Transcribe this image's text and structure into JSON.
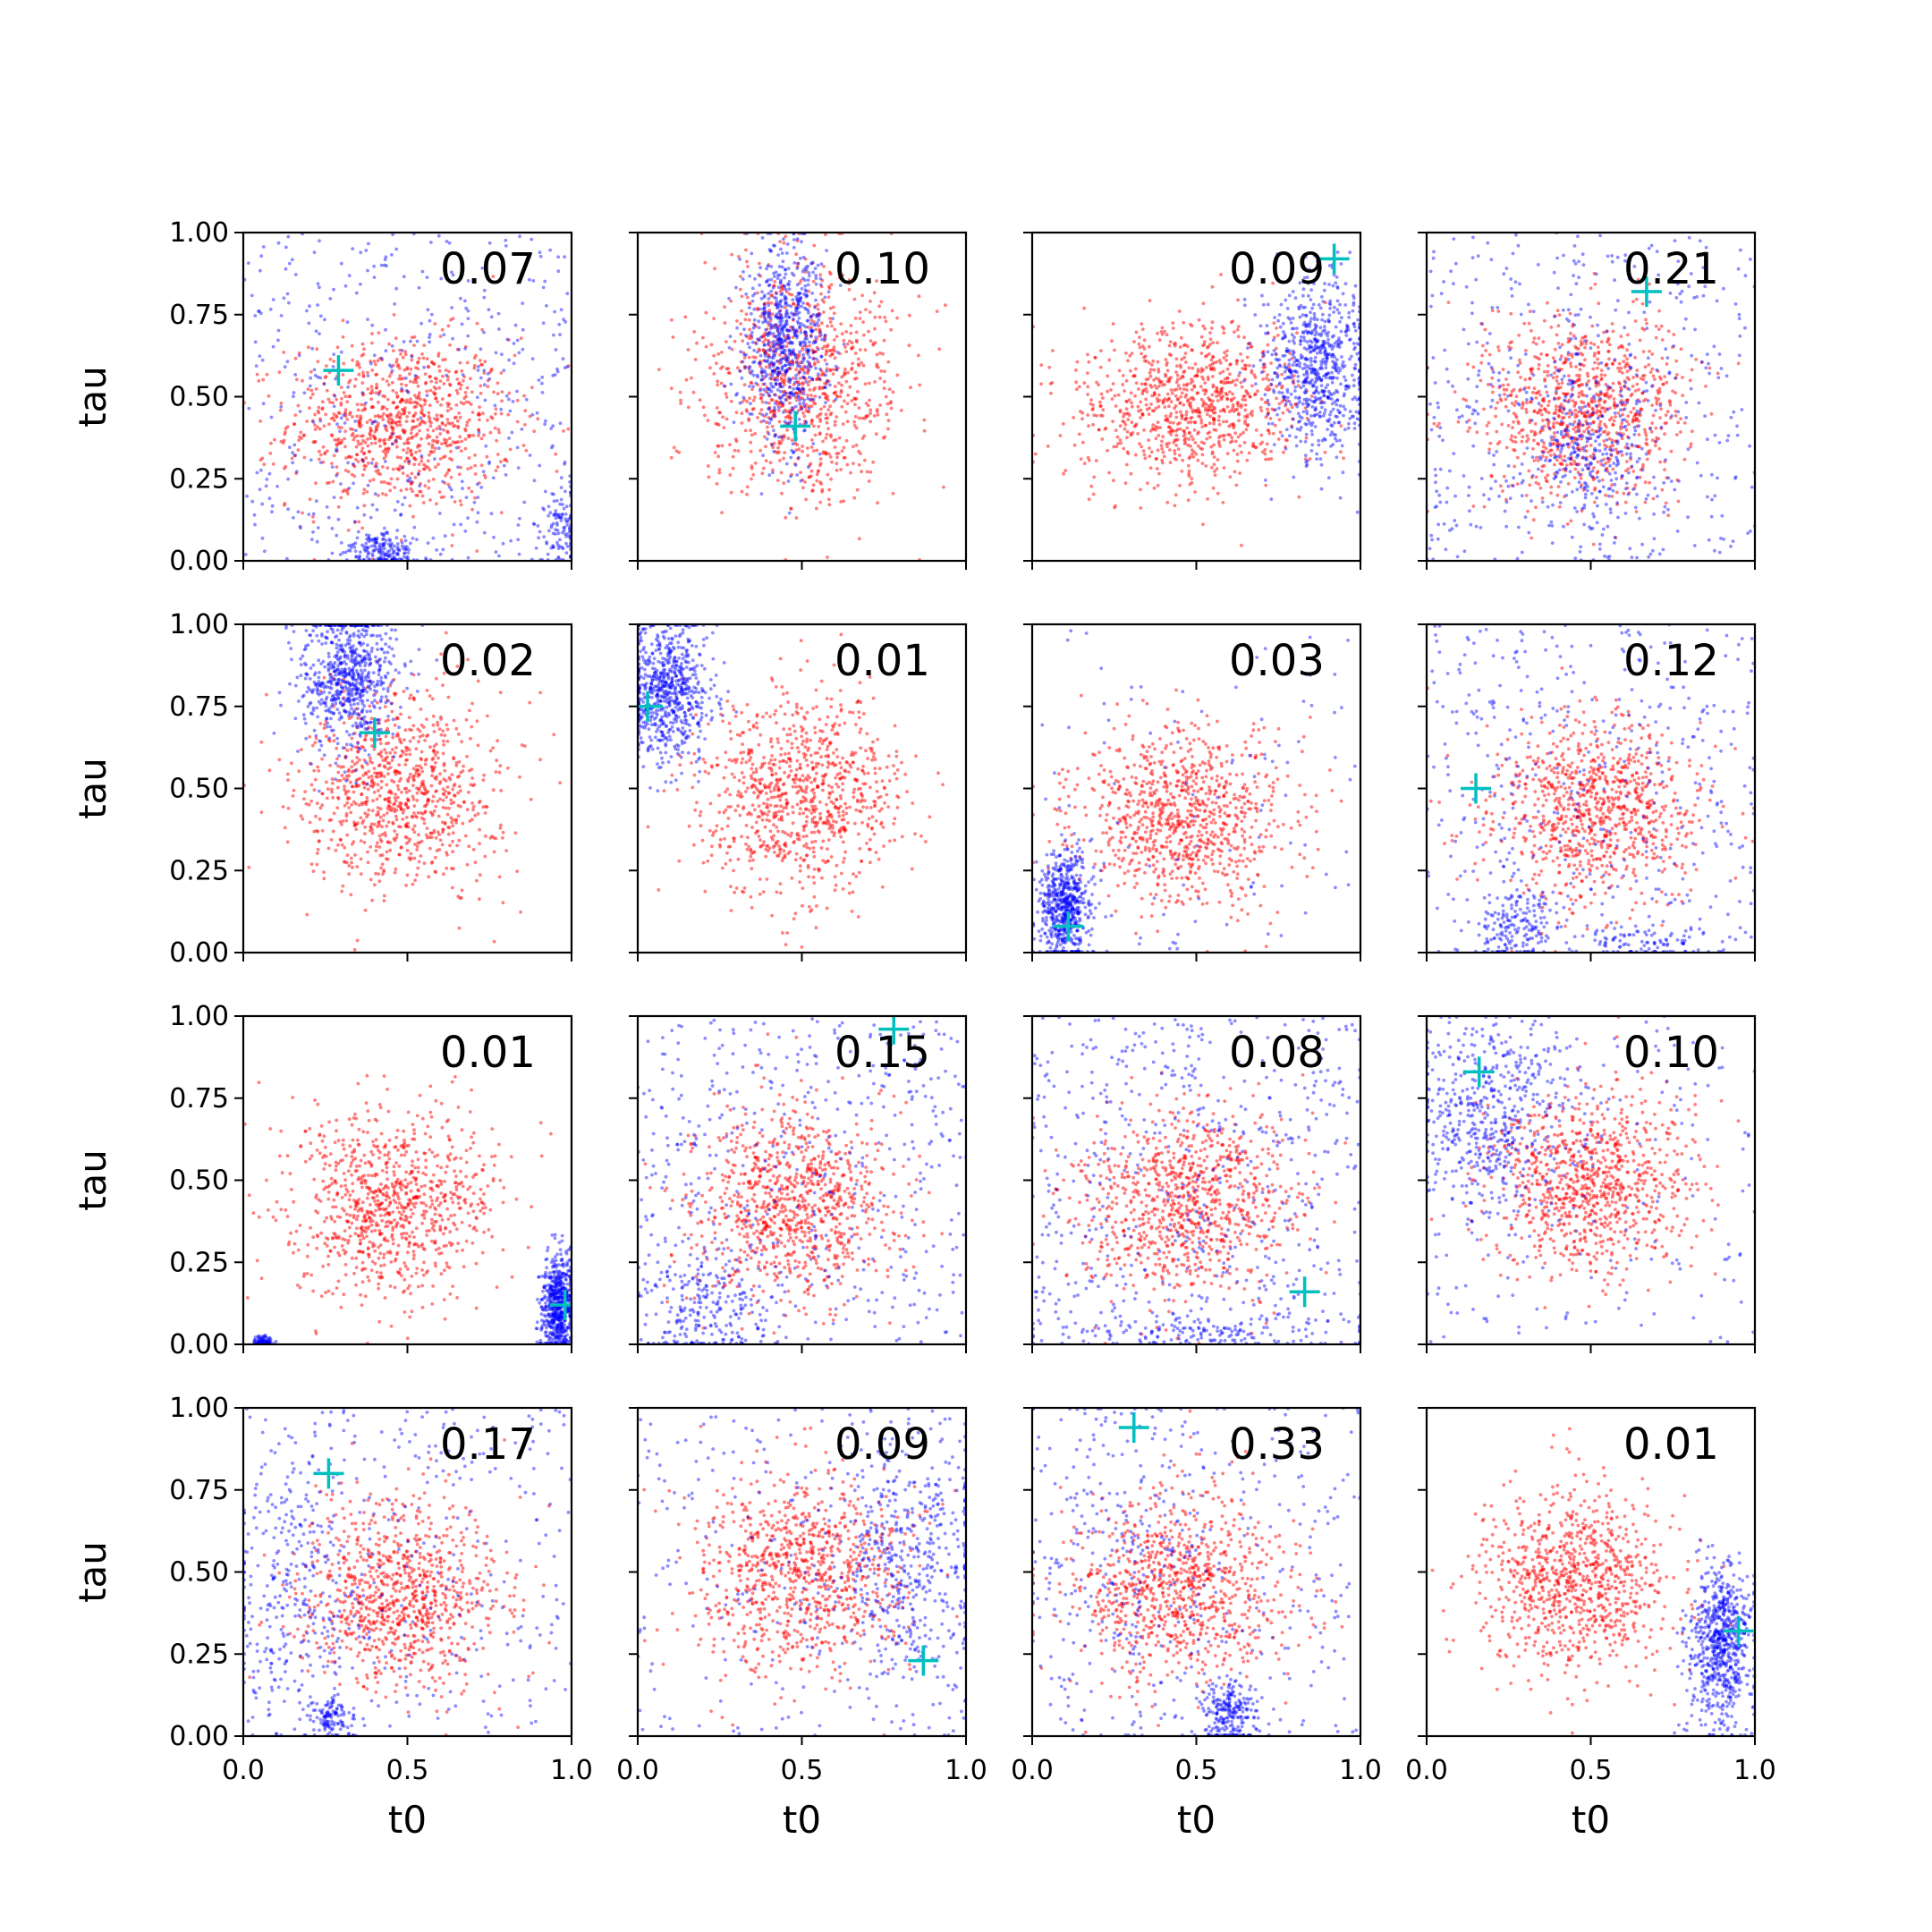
{
  "chart_data": {
    "type": "scatter",
    "grid": false,
    "xlabel": "t0",
    "ylabel": "tau",
    "xlim": [
      0.0,
      1.0
    ],
    "ylim": [
      0.0,
      1.0
    ],
    "x_tick_labels": [
      "0.0",
      "0.5",
      "1.0"
    ],
    "y_tick_labels": [
      "0.00",
      "0.25",
      "0.50",
      "0.75",
      "1.00"
    ],
    "series_colors": {
      "red": "#ff0000",
      "blue": "#0000ff",
      "marker": "#00bfbf"
    },
    "panels": [
      {
        "value": "0.07",
        "marker": [
          0.29,
          0.58
        ],
        "red": {
          "mean": [
            0.48,
            0.42
          ],
          "sd": [
            0.17,
            0.13
          ]
        },
        "blue": [
          {
            "mean": [
              0.42,
              0.03
            ],
            "sd": [
              0.06,
              0.03
            ],
            "w": 0.25
          },
          {
            "mean": [
              0.97,
              0.1
            ],
            "sd": [
              0.03,
              0.07
            ],
            "w": 0.15
          },
          {
            "uniform": true,
            "w": 0.6
          }
        ]
      },
      {
        "value": "0.10",
        "marker": [
          0.48,
          0.41
        ],
        "red": {
          "mean": [
            0.5,
            0.55
          ],
          "sd": [
            0.15,
            0.18
          ]
        },
        "blue": [
          {
            "mean": [
              0.45,
              0.66
            ],
            "sd": [
              0.06,
              0.15
            ],
            "w": 1.0
          }
        ]
      },
      {
        "value": "0.09",
        "marker": [
          0.92,
          0.92
        ],
        "red": {
          "mean": [
            0.48,
            0.48
          ],
          "sd": [
            0.17,
            0.12
          ]
        },
        "blue": [
          {
            "mean": [
              0.87,
              0.6
            ],
            "sd": [
              0.08,
              0.14
            ],
            "w": 1.0
          }
        ]
      },
      {
        "value": "0.21",
        "marker": [
          0.67,
          0.82
        ],
        "red": {
          "mean": [
            0.48,
            0.46
          ],
          "sd": [
            0.16,
            0.14
          ]
        },
        "blue": [
          {
            "mean": [
              0.5,
              0.35
            ],
            "sd": [
              0.09,
              0.13
            ],
            "w": 0.35
          },
          {
            "uniform": true,
            "w": 0.65
          }
        ]
      },
      {
        "value": "0.02",
        "marker": [
          0.4,
          0.67
        ],
        "red": {
          "mean": [
            0.48,
            0.5
          ],
          "sd": [
            0.15,
            0.15
          ]
        },
        "blue": [
          {
            "mean": [
              0.32,
              0.84
            ],
            "sd": [
              0.07,
              0.11
            ],
            "w": 1.0
          }
        ]
      },
      {
        "value": "0.01",
        "marker": [
          0.03,
          0.75
        ],
        "red": {
          "mean": [
            0.5,
            0.48
          ],
          "sd": [
            0.15,
            0.15
          ]
        },
        "blue": [
          {
            "mean": [
              0.09,
              0.8
            ],
            "sd": [
              0.07,
              0.1
            ],
            "w": 1.0
          }
        ]
      },
      {
        "value": "0.03",
        "marker": [
          0.11,
          0.08
        ],
        "red": {
          "mean": [
            0.46,
            0.41
          ],
          "sd": [
            0.16,
            0.13
          ]
        },
        "blue": [
          {
            "mean": [
              0.1,
              0.14
            ],
            "sd": [
              0.04,
              0.08
            ],
            "w": 0.85
          },
          {
            "uniform": true,
            "w": 0.15
          }
        ]
      },
      {
        "value": "0.12",
        "marker": [
          0.15,
          0.5
        ],
        "red": {
          "mean": [
            0.5,
            0.43
          ],
          "sd": [
            0.16,
            0.14
          ]
        },
        "blue": [
          {
            "mean": [
              0.28,
              0.08
            ],
            "sd": [
              0.07,
              0.06
            ],
            "w": 0.25
          },
          {
            "mean": [
              0.7,
              0.03
            ],
            "sd": [
              0.12,
              0.03
            ],
            "w": 0.15
          },
          {
            "uniform": true,
            "w": 0.6
          }
        ]
      },
      {
        "value": "0.01",
        "marker": [
          0.98,
          0.12
        ],
        "red": {
          "mean": [
            0.45,
            0.43
          ],
          "sd": [
            0.15,
            0.14
          ]
        },
        "blue": [
          {
            "mean": [
              0.96,
              0.12
            ],
            "sd": [
              0.025,
              0.07
            ],
            "w": 0.9
          },
          {
            "mean": [
              0.06,
              0.01
            ],
            "sd": [
              0.015,
              0.008
            ],
            "w": 0.1
          }
        ]
      },
      {
        "value": "0.15",
        "marker": [
          0.78,
          0.96
        ],
        "red": {
          "mean": [
            0.47,
            0.43
          ],
          "sd": [
            0.15,
            0.15
          ]
        },
        "blue": [
          {
            "mean": [
              0.2,
              0.12
            ],
            "sd": [
              0.1,
              0.1
            ],
            "w": 0.3
          },
          {
            "uniform": true,
            "w": 0.7
          }
        ]
      },
      {
        "value": "0.08",
        "marker": [
          0.83,
          0.16
        ],
        "red": {
          "mean": [
            0.47,
            0.43
          ],
          "sd": [
            0.17,
            0.14
          ]
        },
        "blue": [
          {
            "mean": [
              0.5,
              0.03
            ],
            "sd": [
              0.25,
              0.03
            ],
            "w": 0.2
          },
          {
            "uniform": true,
            "w": 0.8
          }
        ]
      },
      {
        "value": "0.10",
        "marker": [
          0.16,
          0.83
        ],
        "red": {
          "mean": [
            0.5,
            0.48
          ],
          "sd": [
            0.15,
            0.14
          ]
        },
        "blue": [
          {
            "mean": [
              0.2,
              0.7
            ],
            "sd": [
              0.12,
              0.15
            ],
            "w": 0.7
          },
          {
            "uniform": true,
            "w": 0.3
          }
        ]
      },
      {
        "value": "0.17",
        "marker": [
          0.26,
          0.8
        ],
        "red": {
          "mean": [
            0.48,
            0.43
          ],
          "sd": [
            0.16,
            0.14
          ]
        },
        "blue": [
          {
            "mean": [
              0.27,
              0.05
            ],
            "sd": [
              0.03,
              0.03
            ],
            "w": 0.15
          },
          {
            "mean": [
              0.15,
              0.45
            ],
            "sd": [
              0.1,
              0.2
            ],
            "w": 0.35
          },
          {
            "uniform": true,
            "w": 0.5
          }
        ]
      },
      {
        "value": "0.09",
        "marker": [
          0.87,
          0.23
        ],
        "red": {
          "mean": [
            0.5,
            0.5
          ],
          "sd": [
            0.16,
            0.15
          ]
        },
        "blue": [
          {
            "mean": [
              0.82,
              0.55
            ],
            "sd": [
              0.12,
              0.2
            ],
            "w": 0.7
          },
          {
            "uniform": true,
            "w": 0.3
          }
        ]
      },
      {
        "value": "0.33",
        "marker": [
          0.31,
          0.94
        ],
        "red": {
          "mean": [
            0.45,
            0.45
          ],
          "sd": [
            0.16,
            0.15
          ]
        },
        "blue": [
          {
            "mean": [
              0.6,
              0.07
            ],
            "sd": [
              0.04,
              0.05
            ],
            "w": 0.3
          },
          {
            "mean": [
              0.3,
              0.55
            ],
            "sd": [
              0.18,
              0.25
            ],
            "w": 0.3
          },
          {
            "uniform": true,
            "w": 0.4
          }
        ]
      },
      {
        "value": "0.01",
        "marker": [
          0.95,
          0.32
        ],
        "red": {
          "mean": [
            0.45,
            0.48
          ],
          "sd": [
            0.15,
            0.14
          ]
        },
        "blue": [
          {
            "mean": [
              0.9,
              0.28
            ],
            "sd": [
              0.05,
              0.12
            ],
            "w": 1.0
          }
        ]
      }
    ]
  }
}
